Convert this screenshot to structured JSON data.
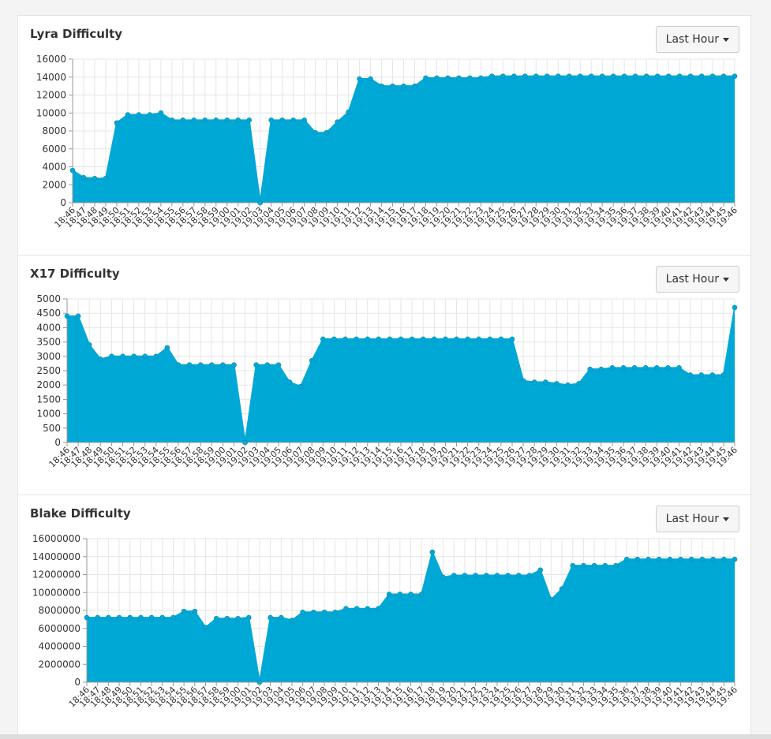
{
  "colors": {
    "fill": "#00a8d6",
    "grid": "#e6e6e6",
    "axis": "#999999",
    "text": "#333333"
  },
  "range_button_label": "Last Hour",
  "footer_text": "",
  "chart_data": [
    {
      "type": "area",
      "title": "Lyra Difficulty",
      "ylim": [
        0,
        16000
      ],
      "yticks": [
        0,
        2000,
        4000,
        6000,
        8000,
        10000,
        12000,
        14000,
        16000
      ],
      "grid": true,
      "x": [
        "18:46",
        "18:47",
        "18:48",
        "18:49",
        "18:50",
        "18:51",
        "18:52",
        "18:53",
        "18:54",
        "18:55",
        "18:56",
        "18:57",
        "18:58",
        "18:59",
        "19:00",
        "19:01",
        "19:02",
        "19:03",
        "19:04",
        "19:05",
        "19:06",
        "19:07",
        "19:08",
        "19:09",
        "19:10",
        "19:11",
        "19:12",
        "19:13",
        "19:14",
        "19:15",
        "19:16",
        "19:17",
        "19:18",
        "19:19",
        "19:20",
        "19:21",
        "19:22",
        "19:23",
        "19:24",
        "19:25",
        "19:26",
        "19:27",
        "19:28",
        "19:29",
        "19:30",
        "19:31",
        "19:32",
        "19:33",
        "19:34",
        "19:35",
        "19:36",
        "19:37",
        "19:38",
        "19:39",
        "19:40",
        "19:41",
        "19:42",
        "19:43",
        "19:44",
        "19:45",
        "19:46"
      ],
      "values": [
        3600,
        2800,
        2700,
        2700,
        8900,
        9800,
        9800,
        9800,
        10000,
        9200,
        9200,
        9200,
        9200,
        9200,
        9200,
        9200,
        9200,
        0,
        9200,
        9200,
        9200,
        9200,
        7800,
        7800,
        9000,
        10100,
        13800,
        13800,
        13000,
        13000,
        13000,
        13000,
        13900,
        13900,
        13900,
        13900,
        13900,
        13900,
        14100,
        14100,
        14100,
        14100,
        14100,
        14100,
        14100,
        14100,
        14100,
        14100,
        14100,
        14100,
        14100,
        14100,
        14100,
        14100,
        14100,
        14100,
        14100,
        14100,
        14100,
        14100,
        14100
      ]
    },
    {
      "type": "area",
      "title": "X17 Difficulty",
      "ylim": [
        0,
        5000
      ],
      "yticks": [
        0,
        500,
        1000,
        1500,
        2000,
        2500,
        3000,
        3500,
        4000,
        4500,
        5000
      ],
      "grid": true,
      "x": [
        "18:46",
        "18:47",
        "18:48",
        "18:49",
        "18:50",
        "18:51",
        "18:52",
        "18:53",
        "18:54",
        "18:55",
        "18:56",
        "18:57",
        "18:58",
        "18:59",
        "19:00",
        "19:01",
        "19:02",
        "19:03",
        "19:04",
        "19:05",
        "19:06",
        "19:07",
        "19:08",
        "19:09",
        "19:10",
        "19:11",
        "19:12",
        "19:13",
        "19:14",
        "19:15",
        "19:16",
        "19:17",
        "19:18",
        "19:19",
        "19:20",
        "19:21",
        "19:22",
        "19:23",
        "19:24",
        "19:25",
        "19:26",
        "19:27",
        "19:28",
        "19:29",
        "19:30",
        "19:31",
        "19:32",
        "19:33",
        "19:34",
        "19:35",
        "19:36",
        "19:37",
        "19:38",
        "19:39",
        "19:40",
        "19:41",
        "19:42",
        "19:43",
        "19:44",
        "19:45",
        "19:46"
      ],
      "values": [
        4400,
        4400,
        3400,
        2900,
        3000,
        3000,
        3000,
        3000,
        3000,
        3300,
        2700,
        2700,
        2700,
        2700,
        2700,
        2700,
        0,
        2700,
        2700,
        2700,
        2100,
        1950,
        2850,
        3600,
        3600,
        3600,
        3600,
        3600,
        3600,
        3600,
        3600,
        3600,
        3600,
        3600,
        3600,
        3600,
        3600,
        3600,
        3600,
        3600,
        3600,
        2150,
        2100,
        2100,
        2050,
        2000,
        2050,
        2550,
        2550,
        2600,
        2600,
        2600,
        2600,
        2600,
        2600,
        2600,
        2350,
        2350,
        2350,
        2350,
        4700
      ]
    },
    {
      "type": "area",
      "title": "Blake Difficulty",
      "ylim": [
        0,
        16000000
      ],
      "yticks": [
        0,
        2000000,
        4000000,
        6000000,
        8000000,
        10000000,
        12000000,
        14000000,
        16000000
      ],
      "grid": true,
      "x": [
        "18:46",
        "18:47",
        "18:48",
        "18:49",
        "18:50",
        "18:51",
        "18:52",
        "18:53",
        "18:54",
        "18:55",
        "18:56",
        "18:57",
        "18:58",
        "18:59",
        "19:00",
        "19:01",
        "19:02",
        "19:03",
        "19:04",
        "19:05",
        "19:06",
        "19:07",
        "19:08",
        "19:09",
        "19:10",
        "19:11",
        "19:12",
        "19:13",
        "19:14",
        "19:15",
        "19:16",
        "19:17",
        "19:18",
        "19:19",
        "19:20",
        "19:21",
        "19:22",
        "19:23",
        "19:24",
        "19:25",
        "19:26",
        "19:27",
        "19:28",
        "19:29",
        "19:30",
        "19:31",
        "19:32",
        "19:33",
        "19:34",
        "19:35",
        "19:36",
        "19:37",
        "19:38",
        "19:39",
        "19:40",
        "19:41",
        "19:42",
        "19:43",
        "19:44",
        "19:45",
        "19:46"
      ],
      "values": [
        7200000,
        7200000,
        7200000,
        7200000,
        7200000,
        7200000,
        7200000,
        7200000,
        7200000,
        7900000,
        7900000,
        6100000,
        7100000,
        7100000,
        7100000,
        7200000,
        0,
        7200000,
        7200000,
        6900000,
        7800000,
        7800000,
        7800000,
        7800000,
        8200000,
        8200000,
        8200000,
        8200000,
        9800000,
        9800000,
        9800000,
        9800000,
        14500000,
        11700000,
        11900000,
        11900000,
        11900000,
        11900000,
        11900000,
        11900000,
        11900000,
        11900000,
        12500000,
        9200000,
        10400000,
        13000000,
        13000000,
        13000000,
        13000000,
        13000000,
        13700000,
        13700000,
        13700000,
        13700000,
        13700000,
        13700000,
        13700000,
        13700000,
        13700000,
        13700000,
        13700000
      ]
    }
  ]
}
